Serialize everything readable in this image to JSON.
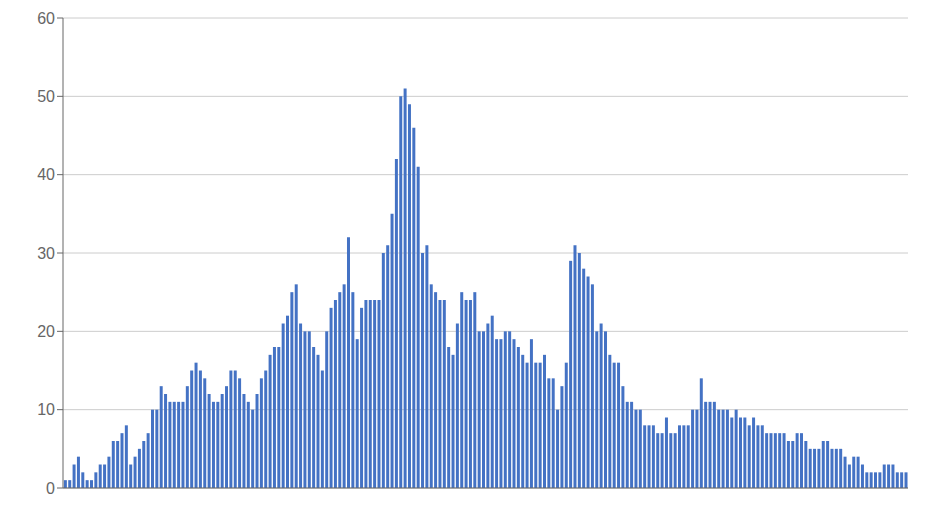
{
  "chart_data": {
    "type": "bar",
    "values": [
      1,
      1,
      3,
      4,
      2,
      1,
      1,
      2,
      3,
      3,
      4,
      6,
      6,
      7,
      8,
      3,
      4,
      5,
      6,
      7,
      10,
      10,
      13,
      12,
      11,
      11,
      11,
      11,
      13,
      15,
      16,
      15,
      14,
      12,
      11,
      11,
      12,
      13,
      15,
      15,
      14,
      12,
      11,
      10,
      12,
      14,
      15,
      17,
      18,
      18,
      21,
      22,
      25,
      26,
      21,
      20,
      20,
      18,
      17,
      15,
      20,
      23,
      24,
      25,
      26,
      32,
      25,
      19,
      23,
      24,
      24,
      24,
      24,
      30,
      31,
      35,
      42,
      50,
      51,
      49,
      46,
      41,
      30,
      31,
      26,
      25,
      24,
      24,
      18,
      17,
      21,
      25,
      24,
      24,
      25,
      20,
      20,
      21,
      22,
      19,
      19,
      20,
      20,
      19,
      18,
      17,
      16,
      19,
      16,
      16,
      17,
      14,
      14,
      10,
      13,
      16,
      29,
      31,
      30,
      28,
      27,
      26,
      20,
      21,
      20,
      17,
      16,
      16,
      13,
      11,
      11,
      10,
      10,
      8,
      8,
      8,
      7,
      7,
      9,
      7,
      7,
      8,
      8,
      8,
      10,
      10,
      14,
      11,
      11,
      11,
      10,
      10,
      10,
      9,
      10,
      9,
      9,
      8,
      9,
      8,
      8,
      7,
      7,
      7,
      7,
      7,
      6,
      6,
      7,
      7,
      6,
      5,
      5,
      5,
      6,
      6,
      5,
      5,
      5,
      4,
      3,
      4,
      4,
      3,
      2,
      2,
      2,
      2,
      3,
      3,
      3,
      2,
      2,
      2
    ],
    "color": "#4472c4",
    "ylim": [
      0,
      60
    ],
    "yticks": [
      0,
      10,
      20,
      30,
      40,
      50,
      60
    ],
    "grid": true,
    "tick_labels": "y"
  }
}
